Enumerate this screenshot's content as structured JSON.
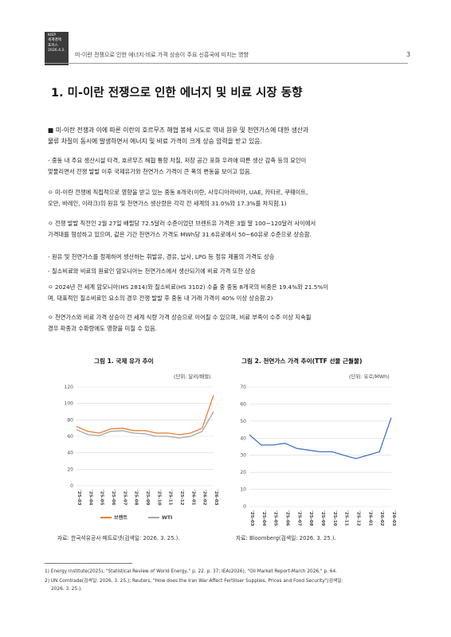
{
  "header": {
    "box_lines": [
      "KIEP",
      "세계경제",
      "포커스",
      "2026.4.2."
    ],
    "title": "미-이란 전쟁으로 인한 에너지·비료 가격 상승이 주요 신흥국에 미치는 영향",
    "page": "3"
  },
  "section_title": "1. 미-이란 전쟁으로 인한 에너지 및 비료 시장 동향",
  "paragraphs": [
    {
      "lines": [
        "■ 미-이란 전쟁과 이에 따른 이란의 호르무즈 해협 봉쇄 시도로 역내 원유 및 천연가스에 대한 생산과",
        "   물류 차질이 동시에 발생하면서 에너지 및 비료 가격이 크게 상승 압력을 받고 있음."
      ]
    },
    {
      "lines": [
        "- 중동 내 주요 생산시설 타격, 호르무즈 해협 통항 차질, 저장 공간 포화 우려에 따른 생산 감축 등의 요인이",
        "  맞물리면서 전쟁 발발 이후 국제유가와 천연가스 가격이 큰 폭의 변동을 보이고 있음."
      ]
    },
    {
      "lines": [
        "ㅇ 미-이란 전쟁에 직접적으로 영향을 받고 있는 중동 8개국(이란, 사우디아라비아, UAE, 카타르, 쿠웨이트,",
        "   오만, 바레인, 이라크)의 원유 및 천연가스 생산량은 각각 전 세계의 31.0%와 17.3%를 차지함.1)"
      ]
    },
    {
      "lines": [
        "ㅇ 전쟁 발발 직전인 2월 27일 배럴당 72.5달러 수준이었던 브렌트유 가격은 3월 말 100~120달러 사이에서",
        "   가격대를 형성하고 있으며, 같은 기간 천연가스 가격도 MWh당 31.6유로에서 50~60유로 수준으로 상승함."
      ]
    },
    {
      "lines": [
        "- 원유 및 천연가스를 정제하여 생산하는 휘발유, 경유, 납사, LPG 등 정유 제품의 가격도 상승"
      ]
    },
    {
      "lines": [
        "- 질소비료와 비료의 원료인 암모니아는 천연가스에서 생산되기에 비료 가격 또한 상승"
      ]
    },
    {
      "lines": [
        "ㅇ 2024년 전 세계 암모니아(HS 2814)와 질소비료(HS 3102) 수출 중 중동 8개국의 비중은 19.4%와 21.5%이",
        "   며, 대표적인 질소비료인 요소의 경우 전쟁 발발 후 중동 내 거래 가격이 40% 이상 상승함.2)"
      ]
    },
    {
      "lines": [
        "ㅇ 천연가스와 비료 가격 상승이 전 세계 식량 가격 상승으로 이어질 수 있으며, 비료 부족이 수주 이상 지속될",
        "   경우 파종과 수확량에도 영향을 미칠 수 있음."
      ]
    }
  ],
  "figures": [
    {
      "title": "그림 1. 국제 유가 추이",
      "unit": "(단위: 달러/배럴)",
      "source": "자료: 한국석유공사 페트로넷(검색일: 2026. 3. 25.)."
    },
    {
      "title": "그림 2. 천연가스 가격 추이(TTF 선물 근월물)",
      "unit": "(단위: 유로/MWh)",
      "source": "자료: Bloomberg(검색일: 2026. 3. 25.)."
    }
  ],
  "chart_data": [
    {
      "type": "line",
      "title": "그림 1. 국제 유가 추이",
      "ylabel": "달러/배럴",
      "ylim": [
        0,
        120
      ],
      "yticks": [
        0,
        20,
        40,
        60,
        80,
        100,
        120
      ],
      "grid": true,
      "legend_position": "bottom",
      "x": [
        "'25-03",
        "'25-04",
        "'25-05",
        "'25-06",
        "'25-07",
        "'25-08",
        "'25-09",
        "'25-10",
        "'25-11",
        "'25-12",
        "'26-01",
        "'26-02",
        "'26-03"
      ],
      "series": [
        {
          "name": "브렌트",
          "color": "#ee7d31",
          "values": [
            72,
            66,
            64,
            69,
            70,
            67,
            67,
            64,
            64,
            62,
            64,
            70,
            110
          ]
        },
        {
          "name": "WTI",
          "color": "#a5a5a5",
          "values": [
            68,
            62,
            61,
            66,
            67,
            64,
            63,
            60,
            60,
            58,
            60,
            66,
            90
          ]
        }
      ]
    },
    {
      "type": "line",
      "title": "그림 2. 천연가스 가격 추이(TTF 선물 근월물)",
      "ylabel": "유로/MWh",
      "ylim": [
        0,
        70
      ],
      "yticks": [
        0,
        10,
        20,
        30,
        40,
        50,
        60,
        70
      ],
      "grid": true,
      "x": [
        "'25-03",
        "'25-04",
        "'25-05",
        "'25-06",
        "'25-07",
        "'25-08",
        "'25-09",
        "'25-10",
        "'25-11",
        "'25-12",
        "'26-01",
        "'26-02",
        "'26-03"
      ],
      "series": [
        {
          "color": "#4472c4",
          "values": [
            42,
            36,
            36,
            37,
            34,
            33,
            32,
            32,
            30,
            28,
            30,
            32,
            52
          ]
        }
      ]
    }
  ],
  "footnotes": [
    "1) Energy Institute(2025), \"Statistical Review of World Energy,\" p. 22. p. 37; IEA(2026), \"Oil Market Report-March 2026,\" p. 64.",
    "2) UN Comtrade(검색일: 2026. 3. 25.); Reuters, \"How does the Iran War Affect Fertiliser Supplies, Prices and Food Security\"(검색일:",
    "   2026. 3. 25.)."
  ]
}
